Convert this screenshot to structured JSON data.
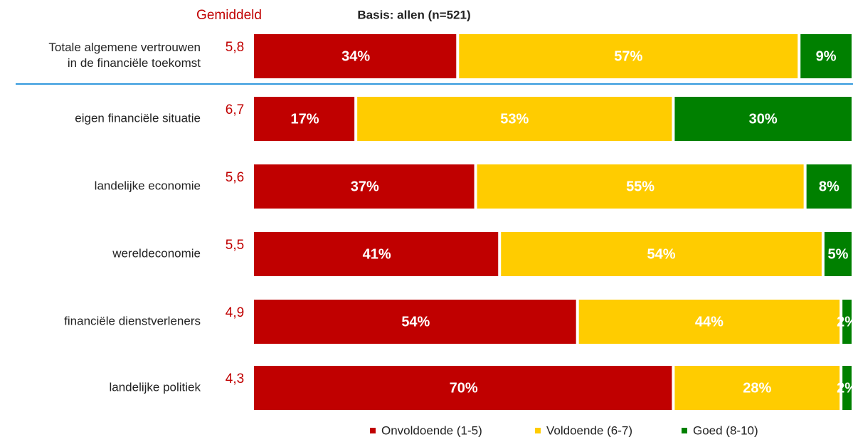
{
  "chart_data": {
    "type": "stacked_barh",
    "average_header": "Gemiddeld",
    "subtitle": "Basis: allen (n=521)",
    "categories": [
      "Totale algemene vertrouwen\nin de financiële toekomst",
      "eigen financiële situatie",
      "landelijke economie",
      "wereldeconomie",
      "financiële dienstverleners",
      "landelijke politiek"
    ],
    "averages": [
      "5,8",
      "6,7",
      "5,6",
      "5,5",
      "4,9",
      "4,3"
    ],
    "series": [
      {
        "name": "Onvoldoende (1-5)",
        "color": "#c00000",
        "values": [
          34,
          17,
          37,
          41,
          54,
          70
        ],
        "value_labels": [
          "34%",
          "17%",
          "37%",
          "41%",
          "54%",
          "70%"
        ]
      },
      {
        "name": "Voldoende (6-7)",
        "color": "#ffcc00",
        "values": [
          57,
          53,
          55,
          54,
          44,
          28
        ],
        "value_labels": [
          "57%",
          "53%",
          "55%",
          "54%",
          "44%",
          "28%"
        ]
      },
      {
        "name": "Goed (8-10)",
        "color": "#008000",
        "values": [
          9,
          30,
          8,
          5,
          2,
          2
        ],
        "value_labels": [
          "9%",
          "30%",
          "8%",
          "5%",
          "2%",
          "2%"
        ]
      }
    ]
  }
}
